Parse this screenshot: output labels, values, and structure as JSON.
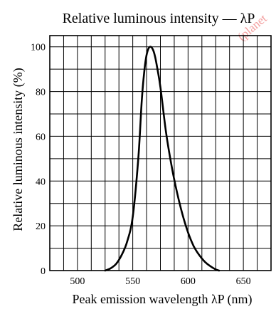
{
  "chart_data": {
    "type": "line",
    "title": "Relative luminous intensity — λP",
    "xlabel": "Peak emission wavelength λP (nm)",
    "ylabel": "Relative luminous intensity (%)",
    "xlim": [
      475,
      675
    ],
    "ylim": [
      0,
      105
    ],
    "x_ticks": [
      500,
      550,
      600,
      650
    ],
    "y_ticks": [
      0,
      20,
      40,
      60,
      80,
      100
    ],
    "grid": true,
    "series": [
      {
        "x": [
          525,
          530,
          535,
          540,
          545,
          550,
          555,
          558,
          560,
          562,
          564,
          566,
          568,
          570,
          572,
          575,
          580,
          585,
          590,
          595,
          600,
          605,
          610,
          615,
          620,
          625,
          628
        ],
        "y": [
          0,
          1,
          3,
          7,
          13,
          24,
          50,
          75,
          87,
          95,
          99,
          100,
          99,
          96,
          91,
          82,
          62,
          47,
          35,
          25,
          17,
          11,
          7,
          4,
          2,
          0.5,
          0
        ]
      }
    ],
    "watermark": "(planet"
  }
}
